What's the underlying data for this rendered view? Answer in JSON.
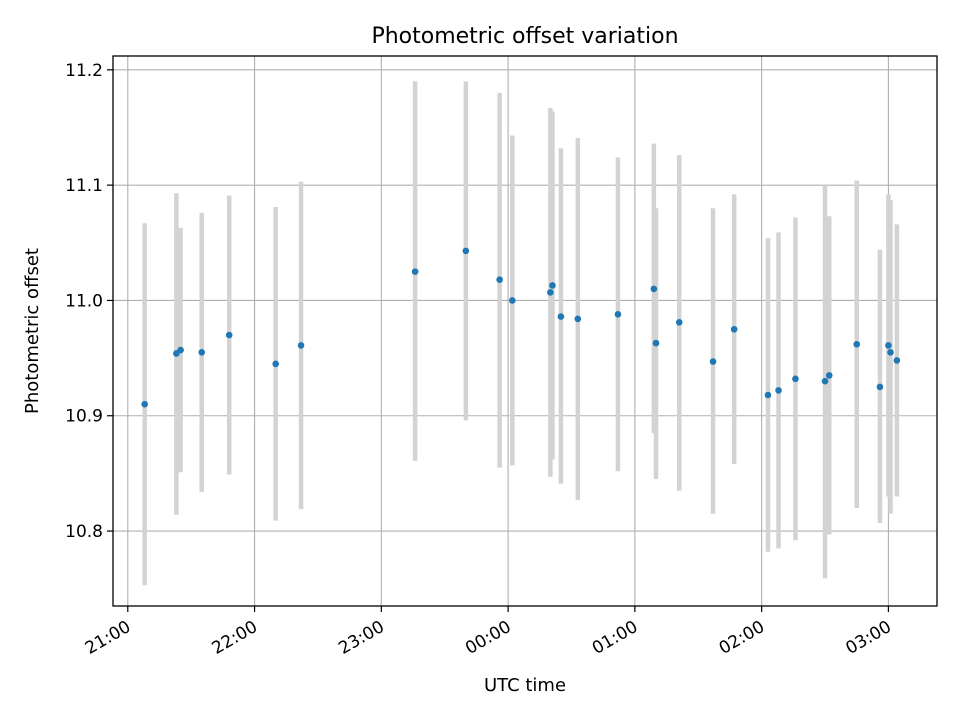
{
  "chart_data": {
    "type": "scatter",
    "title": "Photometric offset variation",
    "xlabel": "UTC time",
    "ylabel": "Photometric offset",
    "x_ticks": [
      "21:00",
      "22:00",
      "23:00",
      "00:00",
      "01:00",
      "02:00",
      "03:00"
    ],
    "y_ticks": [
      "10.8",
      "10.9",
      "11.0",
      "11.1",
      "11.2"
    ],
    "x_tick_values": [
      "21:00",
      "22:00",
      "23:00",
      "00:00",
      "01:00",
      "02:00",
      "03:00"
    ],
    "y_tick_values": [
      10.8,
      10.9,
      11.0,
      11.1,
      11.2
    ],
    "xlim": [
      "20:53",
      "03:23"
    ],
    "ylim": [
      10.735,
      11.212
    ],
    "grid": true,
    "legend": "none",
    "colors": {
      "marker": "#1f77b4",
      "errorbar": "#d3d3d3",
      "grid": "#b0b0b0",
      "axes": "#000000"
    },
    "points": [
      {
        "time": "21:08",
        "y": 10.91,
        "y_low": 10.753,
        "y_high": 11.067
      },
      {
        "time": "21:23",
        "y": 10.954,
        "y_low": 10.814,
        "y_high": 11.093
      },
      {
        "time": "21:25",
        "y": 10.957,
        "y_low": 10.851,
        "y_high": 11.063
      },
      {
        "time": "21:35",
        "y": 10.955,
        "y_low": 10.834,
        "y_high": 11.076
      },
      {
        "time": "21:48",
        "y": 10.97,
        "y_low": 10.849,
        "y_high": 11.091
      },
      {
        "time": "22:10",
        "y": 10.945,
        "y_low": 10.809,
        "y_high": 11.081
      },
      {
        "time": "22:22",
        "y": 10.961,
        "y_low": 10.819,
        "y_high": 11.103
      },
      {
        "time": "23:16",
        "y": 11.025,
        "y_low": 10.861,
        "y_high": 11.19
      },
      {
        "time": "23:40",
        "y": 11.043,
        "y_low": 10.896,
        "y_high": 11.19
      },
      {
        "time": "23:56",
        "y": 11.018,
        "y_low": 10.855,
        "y_high": 11.18
      },
      {
        "time": "00:02",
        "y": 11.0,
        "y_low": 10.857,
        "y_high": 11.143
      },
      {
        "time": "00:20",
        "y": 11.007,
        "y_low": 10.847,
        "y_high": 11.167
      },
      {
        "time": "00:21",
        "y": 11.013,
        "y_low": 10.862,
        "y_high": 11.164
      },
      {
        "time": "00:25",
        "y": 10.986,
        "y_low": 10.841,
        "y_high": 11.132
      },
      {
        "time": "00:33",
        "y": 10.984,
        "y_low": 10.827,
        "y_high": 11.141
      },
      {
        "time": "00:52",
        "y": 10.988,
        "y_low": 10.852,
        "y_high": 11.124
      },
      {
        "time": "01:09",
        "y": 11.01,
        "y_low": 10.885,
        "y_high": 11.136
      },
      {
        "time": "01:10",
        "y": 10.963,
        "y_low": 10.845,
        "y_high": 11.08
      },
      {
        "time": "01:21",
        "y": 10.981,
        "y_low": 10.835,
        "y_high": 11.126
      },
      {
        "time": "01:37",
        "y": 10.947,
        "y_low": 10.815,
        "y_high": 11.08
      },
      {
        "time": "01:47",
        "y": 10.975,
        "y_low": 10.858,
        "y_high": 11.092
      },
      {
        "time": "02:03",
        "y": 10.918,
        "y_low": 10.782,
        "y_high": 11.054
      },
      {
        "time": "02:08",
        "y": 10.922,
        "y_low": 10.785,
        "y_high": 11.059
      },
      {
        "time": "02:16",
        "y": 10.932,
        "y_low": 10.792,
        "y_high": 11.072
      },
      {
        "time": "02:30",
        "y": 10.93,
        "y_low": 10.759,
        "y_high": 11.1
      },
      {
        "time": "02:32",
        "y": 10.935,
        "y_low": 10.797,
        "y_high": 11.073
      },
      {
        "time": "02:45",
        "y": 10.962,
        "y_low": 10.82,
        "y_high": 11.104
      },
      {
        "time": "02:56",
        "y": 10.925,
        "y_low": 10.807,
        "y_high": 11.044
      },
      {
        "time": "03:00",
        "y": 10.961,
        "y_low": 10.83,
        "y_high": 11.092
      },
      {
        "time": "03:01",
        "y": 10.955,
        "y_low": 10.815,
        "y_high": 11.087
      },
      {
        "time": "03:04",
        "y": 10.948,
        "y_low": 10.83,
        "y_high": 11.066
      }
    ]
  }
}
